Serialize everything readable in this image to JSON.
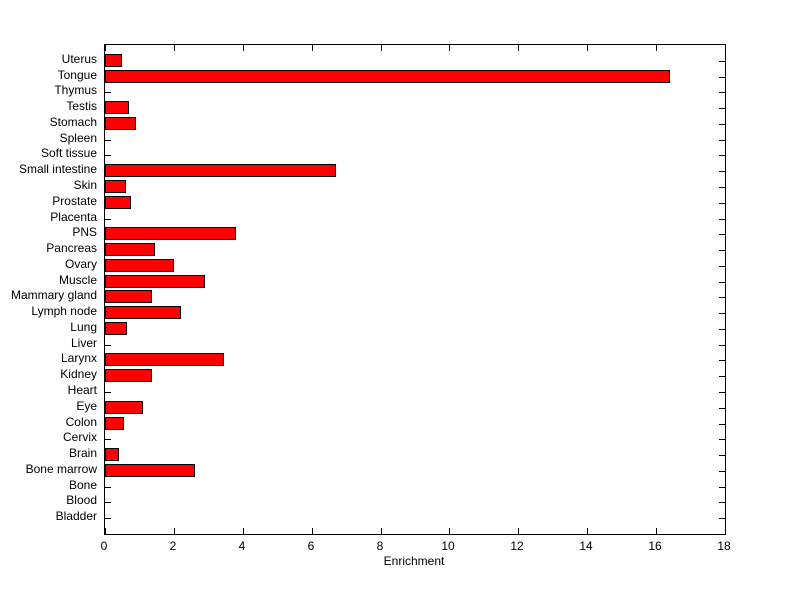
{
  "figure": {
    "background": "#ffffff",
    "axis_color": "#000000"
  },
  "chart_data": {
    "type": "bar",
    "orientation": "horizontal",
    "title": "",
    "xlabel": "Enrichment",
    "ylabel": "",
    "xlim": [
      0,
      18
    ],
    "xticks": [
      0,
      2,
      4,
      6,
      8,
      10,
      12,
      14,
      16,
      18
    ],
    "grid": false,
    "legend": null,
    "bar_color": "#ff0000",
    "bar_edge_color": "#000000",
    "categories": [
      "Uterus",
      "Tongue",
      "Thymus",
      "Testis",
      "Stomach",
      "Spleen",
      "Soft tissue",
      "Small intestine",
      "Skin",
      "Prostate",
      "Placenta",
      "PNS",
      "Pancreas",
      "Ovary",
      "Muscle",
      "Mammary gland",
      "Lymph node",
      "Lung",
      "Liver",
      "Larynx",
      "Kidney",
      "Heart",
      "Eye",
      "Colon",
      "Cervix",
      "Brain",
      "Bone marrow",
      "Bone",
      "Blood",
      "Bladder"
    ],
    "values": [
      0.5,
      16.4,
      0,
      0.7,
      0.9,
      0,
      0,
      6.7,
      0.6,
      0.75,
      0,
      3.8,
      1.45,
      2.0,
      2.9,
      1.35,
      2.2,
      0.65,
      0,
      3.45,
      1.35,
      0,
      1.1,
      0.55,
      0,
      0.4,
      2.6,
      0,
      0,
      0
    ]
  }
}
